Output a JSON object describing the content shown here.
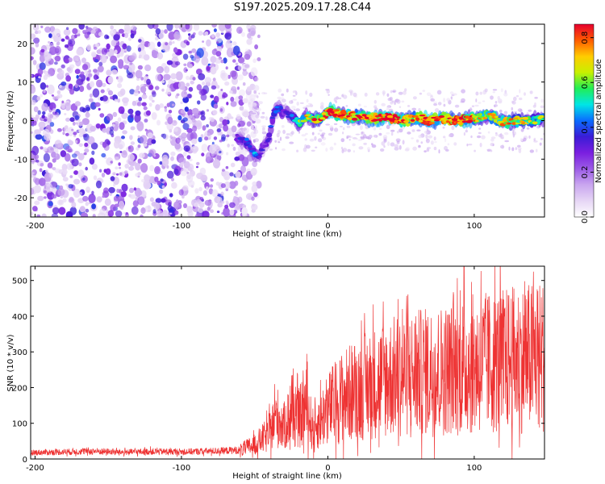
{
  "figure": {
    "title": "S197.2025.209.17.28.C44"
  },
  "colors": {
    "snr_line": "#ee3333",
    "colormap": [
      "#ffffff",
      "#e6d6f5",
      "#c9a6ef",
      "#9c5ce6",
      "#7a1fe0",
      "#3a1cd6",
      "#0a6cff",
      "#00e6e6",
      "#22ee55",
      "#c8f000",
      "#ffcc00",
      "#ff5a00",
      "#e6002e"
    ]
  },
  "chart_data": [
    {
      "type": "heatmap",
      "title": "",
      "xlabel": "Height of straight line (km)",
      "ylabel": "Frequency (Hz)",
      "xlim": [
        -203,
        148
      ],
      "ylim": [
        -25,
        25
      ],
      "xticks": [
        -200,
        -100,
        0,
        100
      ],
      "yticks": [
        -20,
        -10,
        0,
        10,
        20
      ],
      "grid": false,
      "colorbar": {
        "label": "Normalized spectral amplitude",
        "range": [
          0,
          0.86
        ],
        "ticks": [
          0.0,
          0.2,
          0.4,
          0.6,
          0.8
        ]
      },
      "ridge": {
        "x": [
          -62,
          -55,
          -50,
          -47,
          -43,
          -40,
          -37,
          -34,
          -30,
          -25,
          -20,
          -15,
          -10,
          -5,
          0,
          10,
          20,
          30,
          40,
          50,
          60,
          70,
          80,
          90,
          100,
          110,
          120,
          130,
          140,
          148
        ],
        "freq": [
          -4.5,
          -5.5,
          -8.5,
          -9,
          -6,
          -4.5,
          2,
          3.5,
          2,
          1.5,
          -1,
          1,
          0,
          0.5,
          2.5,
          1.5,
          1,
          0.5,
          0.8,
          0,
          1,
          0,
          0.5,
          0,
          0.5,
          1.5,
          -0.5,
          0,
          0,
          0.5
        ],
        "amplitude": [
          0.3,
          0.35,
          0.4,
          0.35,
          0.25,
          0.3,
          0.35,
          0.4,
          0.3,
          0.35,
          0.5,
          0.6,
          0.65,
          0.7,
          0.8,
          0.75,
          0.7,
          0.75,
          0.8,
          0.78,
          0.7,
          0.8,
          0.75,
          0.8,
          0.7,
          0.6,
          0.65,
          0.6,
          0.55,
          0.5
        ]
      }
    },
    {
      "type": "line",
      "title": "",
      "xlabel": "Height of straight line (km)",
      "ylabel": "SNR (10 * v/v)",
      "xlim": [
        -203,
        148
      ],
      "ylim": [
        0,
        540
      ],
      "xticks": [
        -200,
        -100,
        0,
        100
      ],
      "yticks": [
        0,
        100,
        200,
        300,
        400,
        500
      ],
      "grid": false,
      "series": [
        {
          "x": [
            -200,
            -180,
            -160,
            -140,
            -120,
            -100,
            -80,
            -60,
            -50,
            -40,
            -35,
            -30,
            -25,
            -20,
            -15,
            -10,
            -5,
            0,
            10,
            20,
            30,
            40,
            50,
            60,
            70,
            80,
            90,
            100,
            110,
            120,
            130,
            140,
            148
          ],
          "values": [
            18,
            20,
            22,
            19,
            21,
            20,
            22,
            25,
            40,
            70,
            120,
            90,
            130,
            110,
            150,
            80,
            110,
            140,
            175,
            195,
            210,
            225,
            235,
            240,
            245,
            250,
            260,
            265,
            270,
            275,
            280,
            285,
            290
          ]
        }
      ]
    }
  ]
}
